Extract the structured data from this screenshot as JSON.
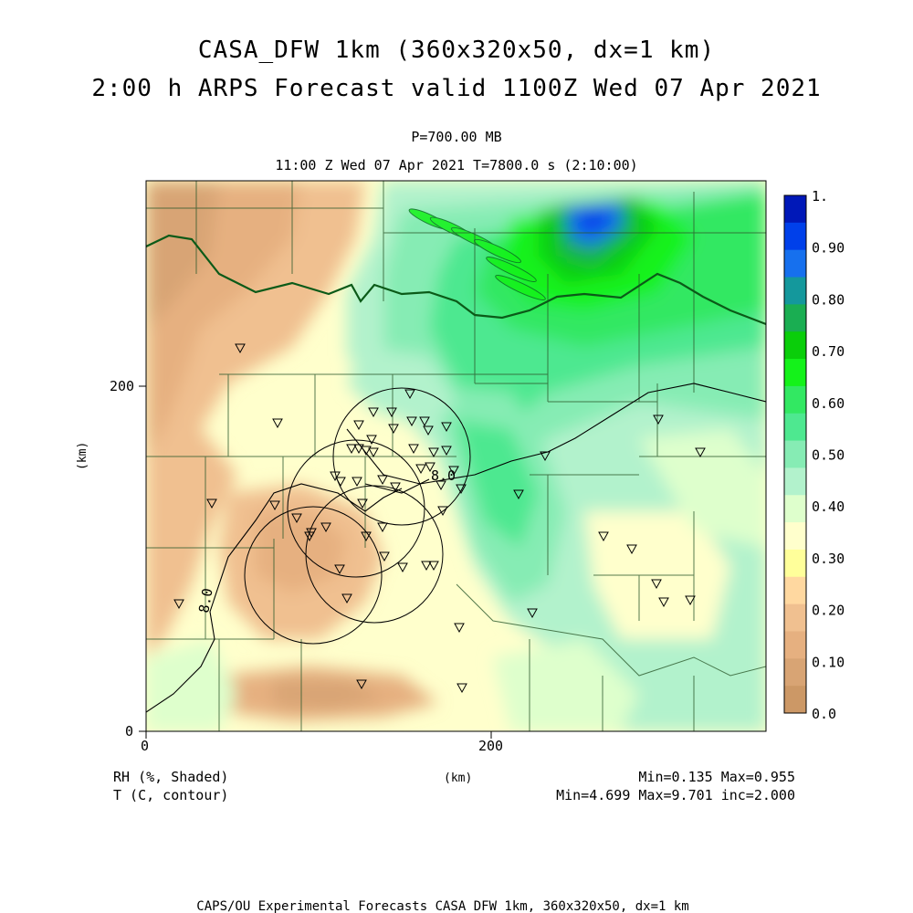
{
  "header": {
    "title_line1": "CASA_DFW 1km (360x320x50, dx=1 km)",
    "title_line2": "2:00 h ARPS Forecast valid 1100Z Wed 07 Apr 2021",
    "level": "P=700.00 MB",
    "time": "11:00 Z Wed 07 Apr 2021   T=7800.0 s (2:10:00)"
  },
  "axes": {
    "y_label": "(km)",
    "x_label": "(km)",
    "y_ticks": [
      "200",
      "0"
    ],
    "x_ticks": [
      "0",
      "200"
    ]
  },
  "legend": {
    "labels": [
      "1.",
      "0.90",
      "0.80",
      "0.70",
      "0.60",
      "0.50",
      "0.40",
      "0.30",
      "0.20",
      "0.10",
      "0.0"
    ],
    "colors": [
      "#0018b8",
      "#0040ea",
      "#1670ee",
      "#14989c",
      "#1aae52",
      "#0ace0a",
      "#14f21a",
      "#32e862",
      "#4ee890",
      "#86ecb4",
      "#b2f2cc",
      "#deffcc",
      "#ffffcc",
      "#ffff9a",
      "#ffd8a0",
      "#f0c090",
      "#e6b080",
      "#d8a474",
      "#cc9866"
    ]
  },
  "field": {
    "rh_label": "RH (%, Shaded)",
    "t_label": "T (C, contour)",
    "rh_stats": "Min=0.135 Max=0.955",
    "t_stats": "Min=4.699 Max=9.701 inc=2.000",
    "contour_label_a": "8.0",
    "contour_label_b": "8.0"
  },
  "footer": "CAPS/OU Experimental Forecasts  CASA DFW 1km, 360x320x50, dx=1 km"
}
